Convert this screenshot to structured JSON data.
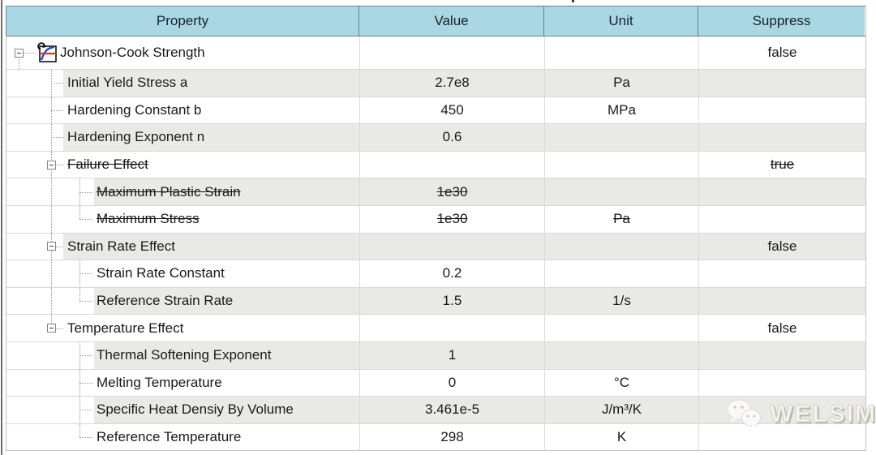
{
  "header": {
    "columns": [
      {
        "label": "Property"
      },
      {
        "label": "Value"
      },
      {
        "label": "Unit"
      },
      {
        "label": "Suppress"
      }
    ]
  },
  "rows": [
    {
      "property": "Johnson-Cook Strength",
      "value": "",
      "unit": "",
      "suppress": "false",
      "level": 0,
      "shade": "white",
      "struck": false,
      "box": true,
      "conn": true,
      "stub": true,
      "icon": "material-curve-icon",
      "l1": "none",
      "l2": "none"
    },
    {
      "property": "Initial Yield Stress a",
      "value": "2.7e8",
      "unit": "Pa",
      "suppress": "",
      "level": 1,
      "shade": "gray",
      "struck": false,
      "box": false,
      "conn": true,
      "l1": "full",
      "l2": "none"
    },
    {
      "property": "Hardening Constant b",
      "value": "450",
      "unit": "MPa",
      "suppress": "",
      "level": 1,
      "shade": "white",
      "struck": false,
      "box": false,
      "conn": true,
      "l1": "full",
      "l2": "none"
    },
    {
      "property": "Hardening Exponent n",
      "value": "0.6",
      "unit": "",
      "suppress": "",
      "level": 1,
      "shade": "gray",
      "struck": false,
      "box": false,
      "conn": true,
      "l1": "full",
      "l2": "none"
    },
    {
      "property": "Failure Effect",
      "value": "",
      "unit": "",
      "suppress": "true",
      "level": 1,
      "shade": "white",
      "struck": true,
      "box": true,
      "conn": true,
      "l1": "full",
      "l2": "none"
    },
    {
      "property": "Maximum Plastic Strain",
      "value": "1e30",
      "unit": "",
      "suppress": "",
      "level": 2,
      "shade": "gray",
      "struck": true,
      "box": false,
      "conn": true,
      "l1": "full",
      "l2": "full"
    },
    {
      "property": "Maximum Stress",
      "value": "1e30",
      "unit": "Pa",
      "suppress": "",
      "level": 2,
      "shade": "white",
      "struck": true,
      "box": false,
      "conn": true,
      "l1": "full",
      "l2": "half"
    },
    {
      "property": "Strain Rate Effect",
      "value": "",
      "unit": "",
      "suppress": "false",
      "level": 1,
      "shade": "gray",
      "struck": false,
      "box": true,
      "conn": true,
      "l1": "full",
      "l2": "none"
    },
    {
      "property": "Strain Rate Constant",
      "value": "0.2",
      "unit": "",
      "suppress": "",
      "level": 2,
      "shade": "white",
      "struck": false,
      "box": false,
      "conn": true,
      "l1": "full",
      "l2": "full"
    },
    {
      "property": "Reference Strain Rate",
      "value": "1.5",
      "unit": "1/s",
      "suppress": "",
      "level": 2,
      "shade": "gray",
      "struck": false,
      "box": false,
      "conn": true,
      "l1": "full",
      "l2": "half"
    },
    {
      "property": "Temperature Effect",
      "value": "",
      "unit": "",
      "suppress": "false",
      "level": 1,
      "shade": "white",
      "struck": false,
      "box": true,
      "conn": true,
      "l1": "half",
      "l2": "none"
    },
    {
      "property": "Thermal Softening Exponent",
      "value": "1",
      "unit": "",
      "suppress": "",
      "level": 2,
      "shade": "gray",
      "struck": false,
      "box": false,
      "conn": true,
      "l1": "none",
      "l2": "full"
    },
    {
      "property": "Melting Temperature",
      "value": "0",
      "unit": "°C",
      "suppress": "",
      "level": 2,
      "shade": "white",
      "struck": false,
      "box": false,
      "conn": true,
      "l1": "none",
      "l2": "full"
    },
    {
      "property": "Specific Heat Densiy By Volume",
      "value": "3.461e-5",
      "unit": "J/m³/K",
      "suppress": "",
      "level": 2,
      "shade": "gray",
      "struck": false,
      "box": false,
      "conn": true,
      "l1": "none",
      "l2": "full"
    },
    {
      "property": "Reference Temperature",
      "value": "298",
      "unit": "K",
      "suppress": "",
      "level": 2,
      "shade": "white",
      "struck": false,
      "box": false,
      "conn": true,
      "l1": "none",
      "l2": "half"
    }
  ],
  "watermark": {
    "label": "WELSIM",
    "icon": "wechat-icon"
  },
  "colors": {
    "header_bg": "#abd6e4",
    "header_border": "#5f8796",
    "alt_row": "#e9e9e5",
    "grid_line": "#d9d9d9",
    "tree_line": "#9a9a9a",
    "icon_curve_blue": "#2b47c8",
    "icon_line_red": "#e03030",
    "text": "#191919"
  }
}
